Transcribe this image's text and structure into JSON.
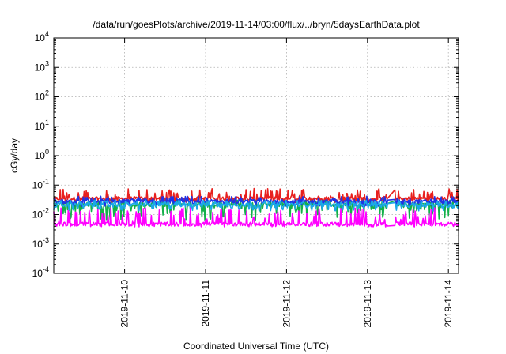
{
  "chart_data": {
    "type": "line",
    "title": "/data/run/goesPlots/archive/2019-11-14/03:00/flux/../bryn/5daysEarthData.plot",
    "xlabel": "Coordinated Universal Time (UTC)",
    "ylabel": "cGy/day",
    "yscale": "log",
    "ylim": [
      0.0001,
      10000
    ],
    "xlim": [
      "2019-11-09T03:00",
      "2019-11-14T03:00"
    ],
    "yticks": [
      {
        "base": "10",
        "exp": "-4",
        "value": 0.0001
      },
      {
        "base": "10",
        "exp": "-3",
        "value": 0.001
      },
      {
        "base": "10",
        "exp": "-2",
        "value": 0.01
      },
      {
        "base": "10",
        "exp": "-1",
        "value": 0.1
      },
      {
        "base": "10",
        "exp": "0",
        "value": 1
      },
      {
        "base": "10",
        "exp": "1",
        "value": 10
      },
      {
        "base": "10",
        "exp": "2",
        "value": 100
      },
      {
        "base": "10",
        "exp": "3",
        "value": 1000
      },
      {
        "base": "10",
        "exp": "4",
        "value": 10000
      }
    ],
    "xticks": [
      {
        "label": "2019-11-10",
        "value": "2019-11-10T00:00"
      },
      {
        "label": "2019-11-11",
        "value": "2019-11-11T00:00"
      },
      {
        "label": "2019-11-12",
        "value": "2019-11-12T00:00"
      },
      {
        "label": "2019-11-13",
        "value": "2019-11-13T00:00"
      },
      {
        "label": "2019-11-14",
        "value": "2019-11-14T00:00"
      }
    ],
    "grid": true,
    "data_gap": [
      "2019-11-13T06:00",
      "2019-11-13T08:00"
    ],
    "series": [
      {
        "color": "#e8201e",
        "base": 0.035,
        "spread_low": 0.7,
        "spread_high": 2.2
      },
      {
        "color": "#14b04a",
        "base": 0.022,
        "spread_low": 0.28,
        "spread_high": 1.4
      },
      {
        "color": "#1f33e6",
        "base": 0.028,
        "spread_low": 0.65,
        "spread_high": 1.5
      },
      {
        "color": "#1aa8e8",
        "base": 0.022,
        "spread_low": 0.6,
        "spread_high": 1.4
      },
      {
        "color": "#ff00ff",
        "base": 0.0048,
        "spread_low": 0.8,
        "spread_high": 3.6
      }
    ]
  }
}
